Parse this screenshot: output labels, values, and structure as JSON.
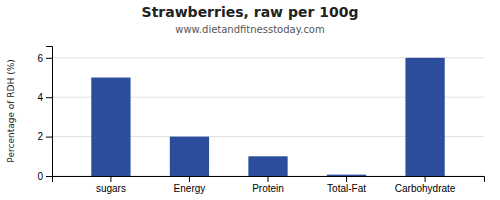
{
  "chart_data": {
    "type": "bar",
    "title": "Strawberries, raw per 100g",
    "subtitle": "www.dietandfitnesstoday.com",
    "ylabel": "Percentage of RDH (%)",
    "categories": [
      "sugars",
      "Energy",
      "Protein",
      "Total-Fat",
      "Carbohydrate"
    ],
    "values": [
      5.0,
      2.0,
      1.0,
      0.07,
      6.0
    ],
    "color": "#2b4d9c",
    "ylim": [
      0,
      6.6
    ],
    "yticks": [
      0,
      2,
      4,
      6
    ],
    "grid": true
  }
}
